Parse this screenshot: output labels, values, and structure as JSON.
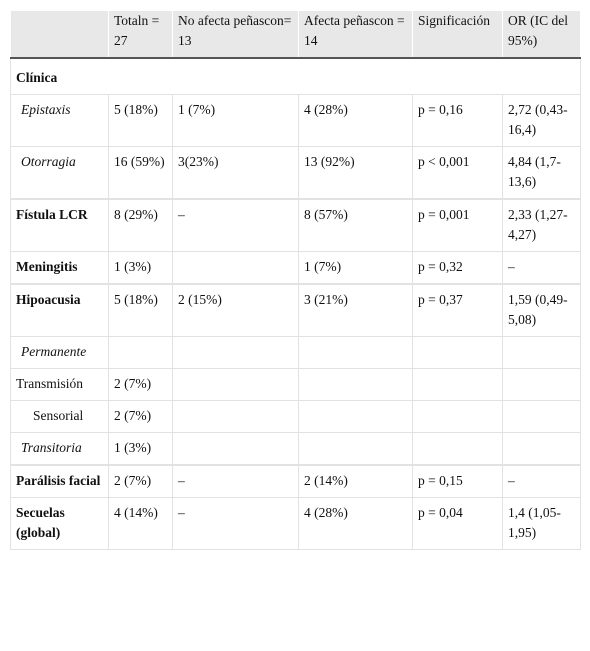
{
  "table": {
    "header": [
      "Totaln = 27",
      "No afecta peñascon= 13",
      "Afecta peñascon = 14",
      "Significación",
      "OR (IC del 95%)"
    ],
    "section": "Clínica",
    "rows": [
      {
        "label": "Epistaxis",
        "cells": [
          "5 (18%)",
          "1 (7%)",
          "4 (28%)",
          "p = 0,16",
          "2,72 (0,43-16,4)"
        ]
      },
      {
        "label": "Otorragia",
        "cells": [
          "16 (59%)",
          "3(23%)",
          "13 (92%)",
          "p < 0,001",
          "4,84 (1,7-13,6)"
        ]
      },
      {
        "label": "Fístula LCR",
        "cells": [
          "8 (29%)",
          "–",
          "8 (57%)",
          "p = 0,001",
          "2,33 (1,27-4,27)"
        ]
      },
      {
        "label": "Meningitis",
        "cells": [
          "1 (3%)",
          null,
          "1 (7%)",
          "p = 0,32",
          "–"
        ]
      },
      {
        "label": "Hipoacusia",
        "cells": [
          "5 (18%)",
          "2 (15%)",
          "3 (21%)",
          "p = 0,37",
          "1,59 (0,49-5,08)"
        ]
      },
      {
        "label": "Permanente",
        "cells": [
          null,
          null,
          null,
          null,
          null
        ]
      },
      {
        "label": "Transmisión",
        "cells": [
          "2 (7%)",
          null,
          null,
          null,
          null
        ]
      },
      {
        "label": "Sensorial",
        "cells": [
          "2 (7%)",
          null,
          null,
          null,
          null
        ]
      },
      {
        "label": "Transitoria",
        "cells": [
          "1 (3%)",
          null,
          null,
          null,
          null
        ]
      },
      {
        "label": "Parálisis facial",
        "cells": [
          "2 (7%)",
          "–",
          "2 (14%)",
          "p = 0,15",
          "–"
        ]
      },
      {
        "label": "Secuelas (global)",
        "cells": [
          "4 (14%)",
          "–",
          "4 (28%)",
          "p = 0,04",
          "1,4 (1,05-1,95)"
        ]
      }
    ]
  }
}
